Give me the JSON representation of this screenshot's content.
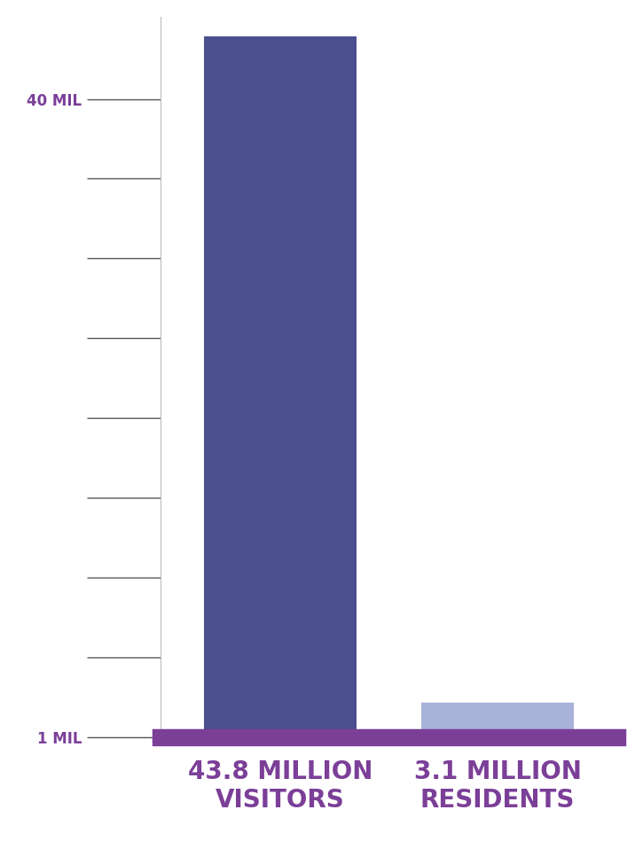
{
  "chart_data": {
    "type": "bar",
    "categories": [
      "43.8 MILLION\nVISITORS",
      "3.1 MILLION\nRESIDENTS"
    ],
    "values": [
      43.8,
      3.1
    ],
    "colors": [
      "#4b4f8e",
      "#a9b3d9"
    ],
    "ylim": [
      1,
      45
    ],
    "yticks": [
      {
        "value": 1,
        "label": "1 MIL"
      },
      {
        "value": 5.875,
        "label": null
      },
      {
        "value": 10.75,
        "label": null
      },
      {
        "value": 15.625,
        "label": null
      },
      {
        "value": 20.5,
        "label": null
      },
      {
        "value": 25.375,
        "label": null
      },
      {
        "value": 30.25,
        "label": null
      },
      {
        "value": 35.125,
        "label": null
      },
      {
        "value": 40,
        "label": "40 MIL"
      }
    ],
    "grid": false
  }
}
